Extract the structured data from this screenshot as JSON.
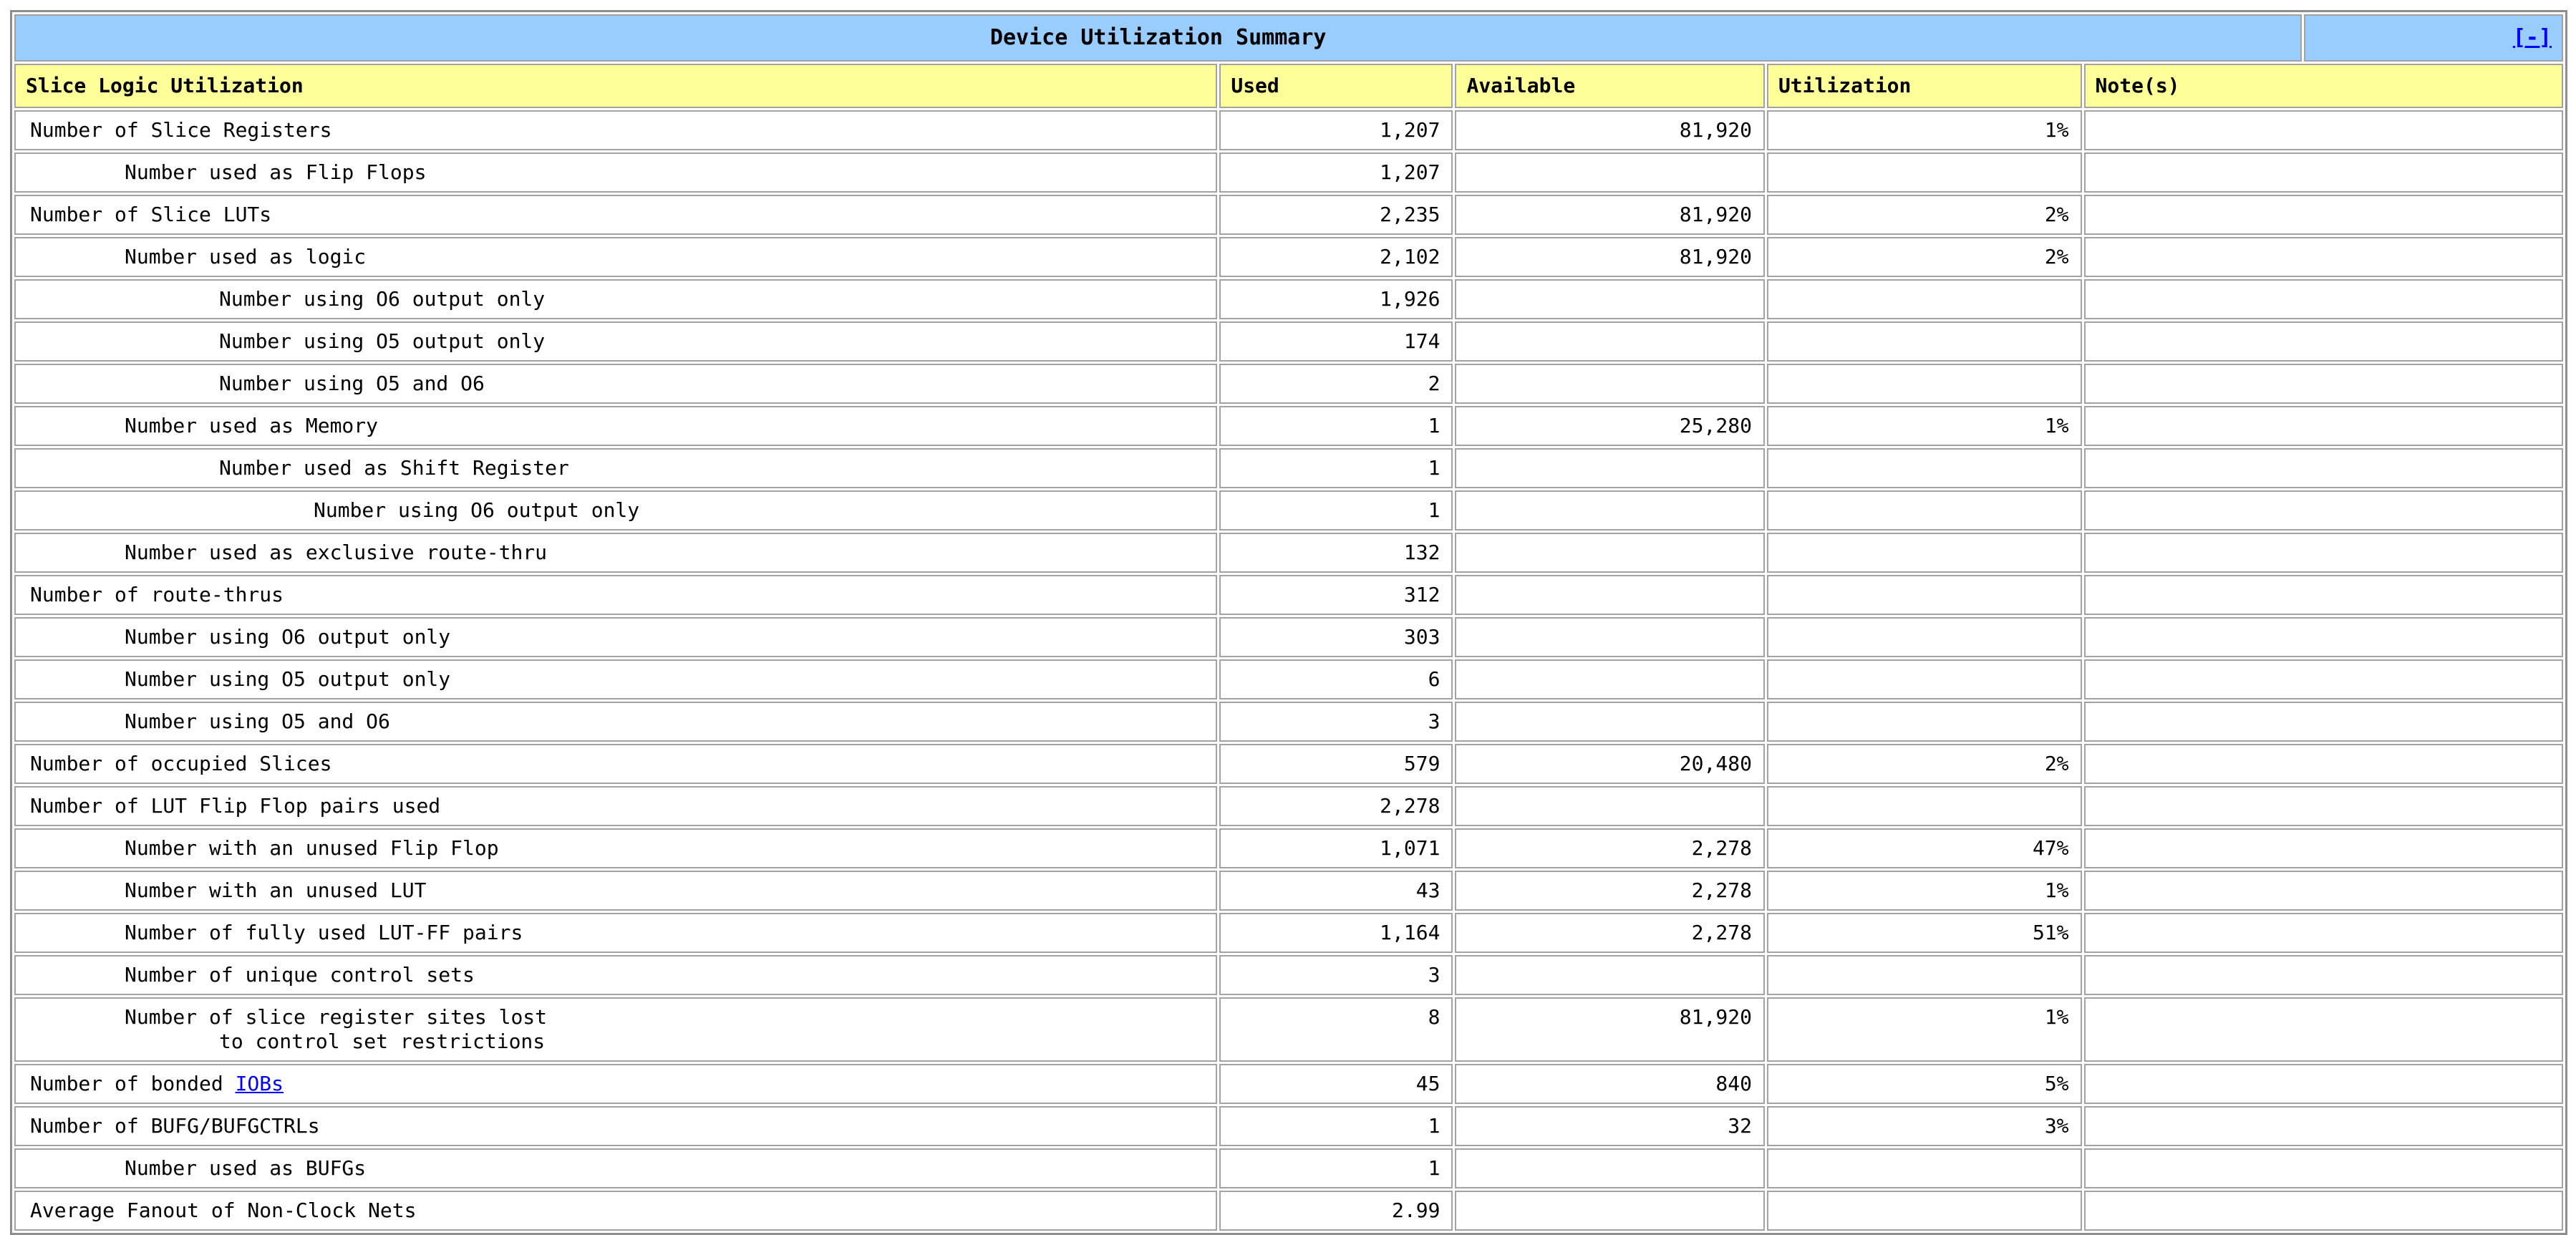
{
  "table": {
    "title": "Device Utilization Summary",
    "collapse_label": "[-]",
    "columns": {
      "c1": "Slice Logic Utilization",
      "c2": "Used",
      "c3": "Available",
      "c4": "Utilization",
      "c5": "Note(s)"
    },
    "rows": [
      {
        "indent": 0,
        "label": "Number of Slice Registers",
        "used": "1,207",
        "available": "81,920",
        "utilization": "1%",
        "note": ""
      },
      {
        "indent": 1,
        "label": "Number used as Flip Flops",
        "used": "1,207",
        "available": "",
        "utilization": "",
        "note": ""
      },
      {
        "indent": 0,
        "label": "Number of Slice LUTs",
        "used": "2,235",
        "available": "81,920",
        "utilization": "2%",
        "note": ""
      },
      {
        "indent": 1,
        "label": "Number used as logic",
        "used": "2,102",
        "available": "81,920",
        "utilization": "2%",
        "note": ""
      },
      {
        "indent": 2,
        "label": "Number using O6 output only",
        "used": "1,926",
        "available": "",
        "utilization": "",
        "note": ""
      },
      {
        "indent": 2,
        "label": "Number using O5 output only",
        "used": "174",
        "available": "",
        "utilization": "",
        "note": ""
      },
      {
        "indent": 2,
        "label": "Number using O5 and O6",
        "used": "2",
        "available": "",
        "utilization": "",
        "note": ""
      },
      {
        "indent": 1,
        "label": "Number used as Memory",
        "used": "1",
        "available": "25,280",
        "utilization": "1%",
        "note": ""
      },
      {
        "indent": 2,
        "label": "Number used as Shift Register",
        "used": "1",
        "available": "",
        "utilization": "",
        "note": ""
      },
      {
        "indent": 3,
        "label": "Number using O6 output only",
        "used": "1",
        "available": "",
        "utilization": "",
        "note": ""
      },
      {
        "indent": 1,
        "label": "Number used as exclusive route-thru",
        "used": "132",
        "available": "",
        "utilization": "",
        "note": ""
      },
      {
        "indent": 0,
        "label": "Number of route-thrus",
        "used": "312",
        "available": "",
        "utilization": "",
        "note": ""
      },
      {
        "indent": 1,
        "label": "Number using O6 output only",
        "used": "303",
        "available": "",
        "utilization": "",
        "note": ""
      },
      {
        "indent": 1,
        "label": "Number using O5 output only",
        "used": "6",
        "available": "",
        "utilization": "",
        "note": ""
      },
      {
        "indent": 1,
        "label": "Number using O5 and O6",
        "used": "3",
        "available": "",
        "utilization": "",
        "note": ""
      },
      {
        "indent": 0,
        "label": "Number of occupied Slices",
        "used": "579",
        "available": "20,480",
        "utilization": "2%",
        "note": ""
      },
      {
        "indent": 0,
        "label": "Number of LUT Flip Flop pairs used",
        "used": "2,278",
        "available": "",
        "utilization": "",
        "note": ""
      },
      {
        "indent": 1,
        "label": "Number with an unused Flip Flop",
        "used": "1,071",
        "available": "2,278",
        "utilization": "47%",
        "note": ""
      },
      {
        "indent": 1,
        "label": "Number with an unused LUT",
        "used": "43",
        "available": "2,278",
        "utilization": "1%",
        "note": ""
      },
      {
        "indent": 1,
        "label": "Number of fully used LUT-FF pairs",
        "used": "1,164",
        "available": "2,278",
        "utilization": "51%",
        "note": ""
      },
      {
        "indent": 1,
        "label": "Number of unique control sets",
        "used": "3",
        "available": "",
        "utilization": "",
        "note": ""
      },
      {
        "indent": 1,
        "label": "Number of slice register sites lost",
        "label_line2": "to control set restrictions",
        "used": "8",
        "available": "81,920",
        "utilization": "1%",
        "note": ""
      },
      {
        "indent": 0,
        "label": "Number of bonded ",
        "link_text": "IOBs",
        "used": "45",
        "available": "840",
        "utilization": "5%",
        "note": ""
      },
      {
        "indent": 0,
        "label": "Number of BUFG/BUFGCTRLs",
        "used": "1",
        "available": "32",
        "utilization": "3%",
        "note": ""
      },
      {
        "indent": 1,
        "label": "Number used as BUFGs",
        "used": "1",
        "available": "",
        "utilization": "",
        "note": ""
      },
      {
        "indent": 0,
        "label": "Average Fanout of Non-Clock Nets",
        "used": "2.99",
        "available": "",
        "utilization": "",
        "note": ""
      }
    ]
  },
  "colors": {
    "title_bg": "#99CCFF",
    "header_bg": "#FFFF99",
    "link": "#0000FF",
    "cell_border": "#A2A2A2"
  }
}
